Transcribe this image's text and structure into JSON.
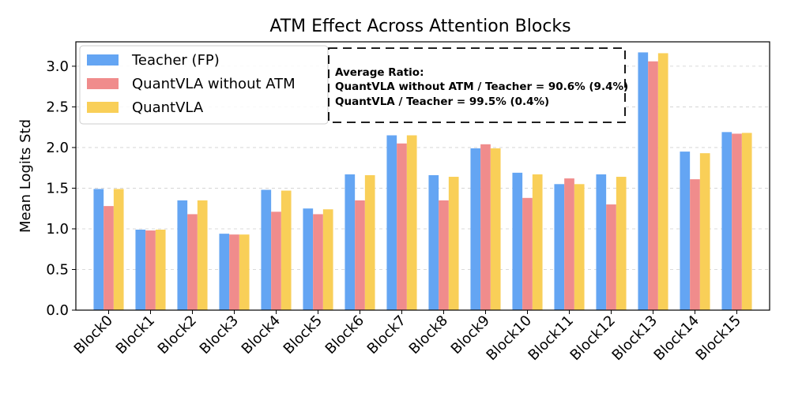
{
  "chart_data": {
    "type": "bar",
    "title": "ATM Effect Across Attention Blocks",
    "xlabel": "",
    "ylabel": "Mean Logits Std",
    "ylim": [
      0,
      3.3
    ],
    "yticks": [
      "0.0",
      "0.5",
      "1.0",
      "1.5",
      "2.0",
      "2.5",
      "3.0"
    ],
    "grid": "horizontal dashed",
    "legend_position": "top-left",
    "categories": [
      "Block0",
      "Block1",
      "Block2",
      "Block3",
      "Block4",
      "Block5",
      "Block6",
      "Block7",
      "Block8",
      "Block9",
      "Block10",
      "Block11",
      "Block12",
      "Block13",
      "Block14",
      "Block15"
    ],
    "series": [
      {
        "name": "Teacher (FP)",
        "color": "#64a5f3",
        "values": [
          1.49,
          0.99,
          1.35,
          0.94,
          1.48,
          1.25,
          1.67,
          2.15,
          1.66,
          1.99,
          1.69,
          1.55,
          1.67,
          3.17,
          1.95,
          2.19
        ]
      },
      {
        "name": "QuantVLA without ATM",
        "color": "#f08c8c",
        "values": [
          1.28,
          0.98,
          1.18,
          0.93,
          1.21,
          1.18,
          1.35,
          2.05,
          1.35,
          2.04,
          1.38,
          1.62,
          1.3,
          3.06,
          1.61,
          2.17
        ]
      },
      {
        "name": "QuantVLA",
        "color": "#f9cf58",
        "values": [
          1.49,
          0.99,
          1.35,
          0.93,
          1.47,
          1.24,
          1.66,
          2.15,
          1.64,
          1.99,
          1.67,
          1.55,
          1.64,
          3.16,
          1.93,
          2.18
        ]
      }
    ],
    "annotation": {
      "lines": [
        "Average Ratio:",
        "QuantVLA without ATM / Teacher = 90.6% (9.4%)",
        "QuantVLA / Teacher = 99.5% (0.4%)"
      ]
    }
  }
}
